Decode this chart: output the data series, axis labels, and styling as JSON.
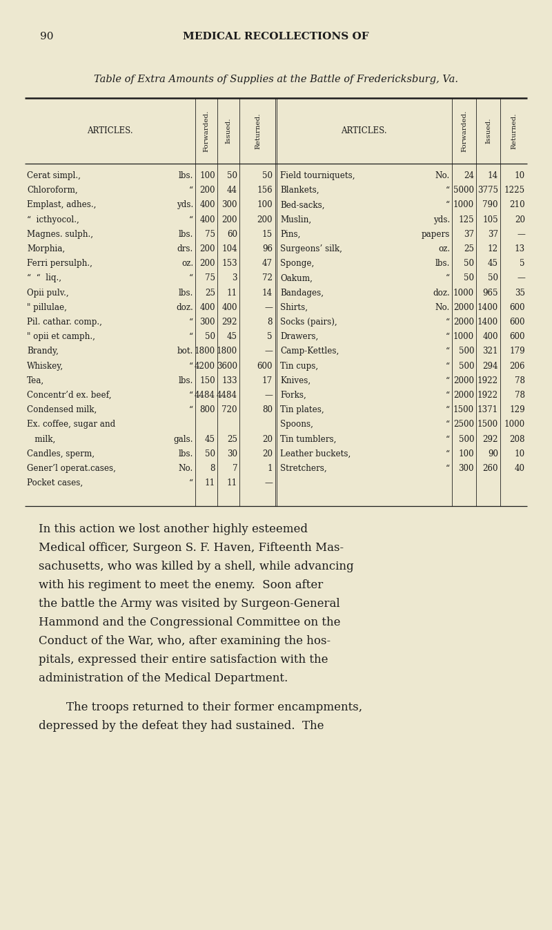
{
  "bg_color": "#ede8d0",
  "text_color": "#1c1c1c",
  "page_number": "90",
  "header": "MEDICAL RECOLLECTIONS OF",
  "table_title": "Table of Extra Amounts of Supplies at the Battle of Fredericksburg, Va.",
  "left_rows": [
    [
      "Cerat simpl.,",
      "lbs.",
      "100",
      "50",
      "50"
    ],
    [
      "Chloroform,",
      "“",
      "200",
      "44",
      "156"
    ],
    [
      "Emplast, adhes.,",
      "yds.",
      "400",
      "300",
      "100"
    ],
    [
      "“  icthyocol.,",
      "“",
      "400",
      "200",
      "200"
    ],
    [
      "Magnes. sulph.,",
      "lbs.",
      "75",
      "60",
      "15"
    ],
    [
      "Morphia,",
      "drs.",
      "200",
      "104",
      "96"
    ],
    [
      "Ferri persulph.,",
      "oz.",
      "200",
      "153",
      "47"
    ],
    [
      "“  “  liq.,",
      "“",
      "75",
      "3",
      "72"
    ],
    [
      "Opii pulv.,",
      "lbs.",
      "25",
      "11",
      "14"
    ],
    [
      "\" pillulae,",
      "doz.",
      "400",
      "400",
      "—"
    ],
    [
      "Pil. cathar. comp.,",
      "“",
      "300",
      "292",
      "8"
    ],
    [
      "\" opii et camph.,",
      "“",
      "50",
      "45",
      "5"
    ],
    [
      "Brandy,",
      "bot.",
      "1800",
      "1800",
      "—"
    ],
    [
      "Whiskey,",
      "“",
      "4200",
      "3600",
      "600"
    ],
    [
      "Tea,",
      "lbs.",
      "150",
      "133",
      "17"
    ],
    [
      "Concentr’d ex. beef,",
      "“",
      "4484",
      "4484",
      "—"
    ],
    [
      "Condensed milk,",
      "“",
      "800",
      "720",
      "80"
    ],
    [
      "Ex. coffee, sugar and",
      "",
      "",
      "",
      ""
    ],
    [
      "   milk,",
      "gals.",
      "45",
      "25",
      "20"
    ],
    [
      "Candles, sperm,",
      "lbs.",
      "50",
      "30",
      "20"
    ],
    [
      "Gener’l operat.cases,",
      "No.",
      "8",
      "7",
      "1"
    ],
    [
      "Pocket cases,",
      "“",
      "11",
      "11",
      "—"
    ]
  ],
  "right_rows": [
    [
      "Field tourniquets,",
      "No.",
      "24",
      "14",
      "10"
    ],
    [
      "Blankets,",
      "“",
      "5000",
      "3775",
      "1225"
    ],
    [
      "Bed-sacks,",
      "“",
      "1000",
      "790",
      "210"
    ],
    [
      "Muslin,",
      "yds.",
      "125",
      "105",
      "20"
    ],
    [
      "Pins,",
      "papers",
      "37",
      "37",
      "—"
    ],
    [
      "Surgeons’ silk,",
      "oz.",
      "25",
      "12",
      "13"
    ],
    [
      "Sponge,",
      "lbs.",
      "50",
      "45",
      "5"
    ],
    [
      "Oakum,",
      "“",
      "50",
      "50",
      "—"
    ],
    [
      "Bandages,",
      "doz.",
      "1000",
      "965",
      "35"
    ],
    [
      "Shirts,",
      "No.",
      "2000",
      "1400",
      "600"
    ],
    [
      "Socks (pairs),",
      "“",
      "2000",
      "1400",
      "600"
    ],
    [
      "Drawers,",
      "“",
      "1000",
      "400",
      "600"
    ],
    [
      "Camp-Kettles,",
      "“",
      "500",
      "321",
      "179"
    ],
    [
      "Tin cups,",
      "“",
      "500",
      "294",
      "206"
    ],
    [
      "Knives,",
      "“",
      "2000",
      "1922",
      "78"
    ],
    [
      "Forks,",
      "“",
      "2000",
      "1922",
      "78"
    ],
    [
      "Tin plates,",
      "“",
      "1500",
      "1371",
      "129"
    ],
    [
      "Spoons,",
      "“",
      "2500",
      "1500",
      "1000"
    ],
    [
      "Tin tumblers,",
      "“",
      "500",
      "292",
      "208"
    ],
    [
      "Leather buckets,",
      "“",
      "100",
      "90",
      "10"
    ],
    [
      "Stretchers,",
      "“",
      "300",
      "260",
      "40"
    ],
    [
      "",
      "",
      "",
      "",
      ""
    ]
  ],
  "para1_lines": [
    "In this action we lost another highly esteemed",
    "Medical officer, Surgeon S. F. Haven, Fifteenth Mas-",
    "sachusetts, who was killed by a shell, while advancing",
    "with his regiment to meet the enemy.  Soon after",
    "the battle the Army was visited by Surgeon-General",
    "Hammond and the Congressional Committee on the",
    "Conduct of the War, who, after examining the hos-",
    "pitals, expressed their entire satisfaction with the",
    "administration of the Medical Department."
  ],
  "para2_lines": [
    "The troops returned to their former encampments,",
    "depressed by the defeat they had sustained.  The"
  ]
}
